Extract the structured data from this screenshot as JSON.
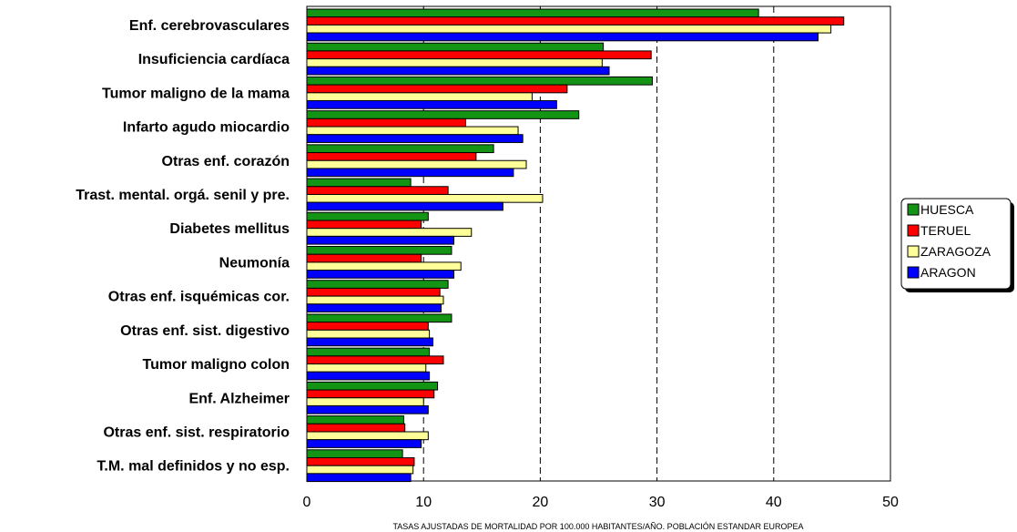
{
  "chart_data": {
    "type": "bar",
    "orientation": "horizontal",
    "xlabel": "TASAS AJUSTADAS DE MORTALIDAD POR 100.000 HABITANTES/AÑO. POBLACIÓN ESTANDAR EUROPEA",
    "xlim": [
      0,
      50
    ],
    "xticks": [
      "0",
      "10",
      "20",
      "30",
      "40",
      "50"
    ],
    "gridlines_at": [
      10,
      20,
      30,
      40
    ],
    "legend_position": "right",
    "categories": [
      "Enf. cerebrovasculares",
      "Insuficiencia cardíaca",
      "Tumor maligno de la mama",
      "Infarto agudo miocardio",
      "Otras enf. corazón",
      "Trast. mental. orgá. senil y pre.",
      "Diabetes mellitus",
      "Neumonía",
      "Otras enf. isquémicas cor.",
      "Otras enf. sist. digestivo",
      "Tumor maligno colon",
      "Enf. Alzheimer",
      "Otras enf. sist. respiratorio",
      "T.M. mal definidos y no esp."
    ],
    "series": [
      {
        "name": "HUESCA",
        "color": "#149414",
        "values": [
          38.7,
          25.4,
          29.6,
          23.3,
          16.0,
          8.9,
          10.4,
          12.4,
          12.1,
          12.4,
          10.5,
          11.2,
          8.3,
          8.2
        ]
      },
      {
        "name": "TERUEL",
        "color": "#ff0000",
        "values": [
          46.0,
          29.5,
          22.3,
          13.6,
          14.5,
          12.1,
          9.8,
          9.8,
          11.4,
          10.4,
          11.7,
          10.9,
          8.4,
          9.2
        ]
      },
      {
        "name": "ZARAGOZA",
        "color": "#ffff99",
        "values": [
          44.9,
          25.3,
          19.3,
          18.1,
          18.8,
          20.2,
          14.1,
          13.2,
          11.7,
          10.5,
          10.2,
          10.0,
          10.4,
          9.1
        ]
      },
      {
        "name": "ARAGON",
        "color": "#0000ff",
        "values": [
          43.8,
          25.9,
          21.4,
          18.5,
          17.7,
          16.8,
          12.6,
          12.6,
          11.5,
          10.8,
          10.5,
          10.4,
          9.8,
          8.9
        ]
      }
    ]
  }
}
